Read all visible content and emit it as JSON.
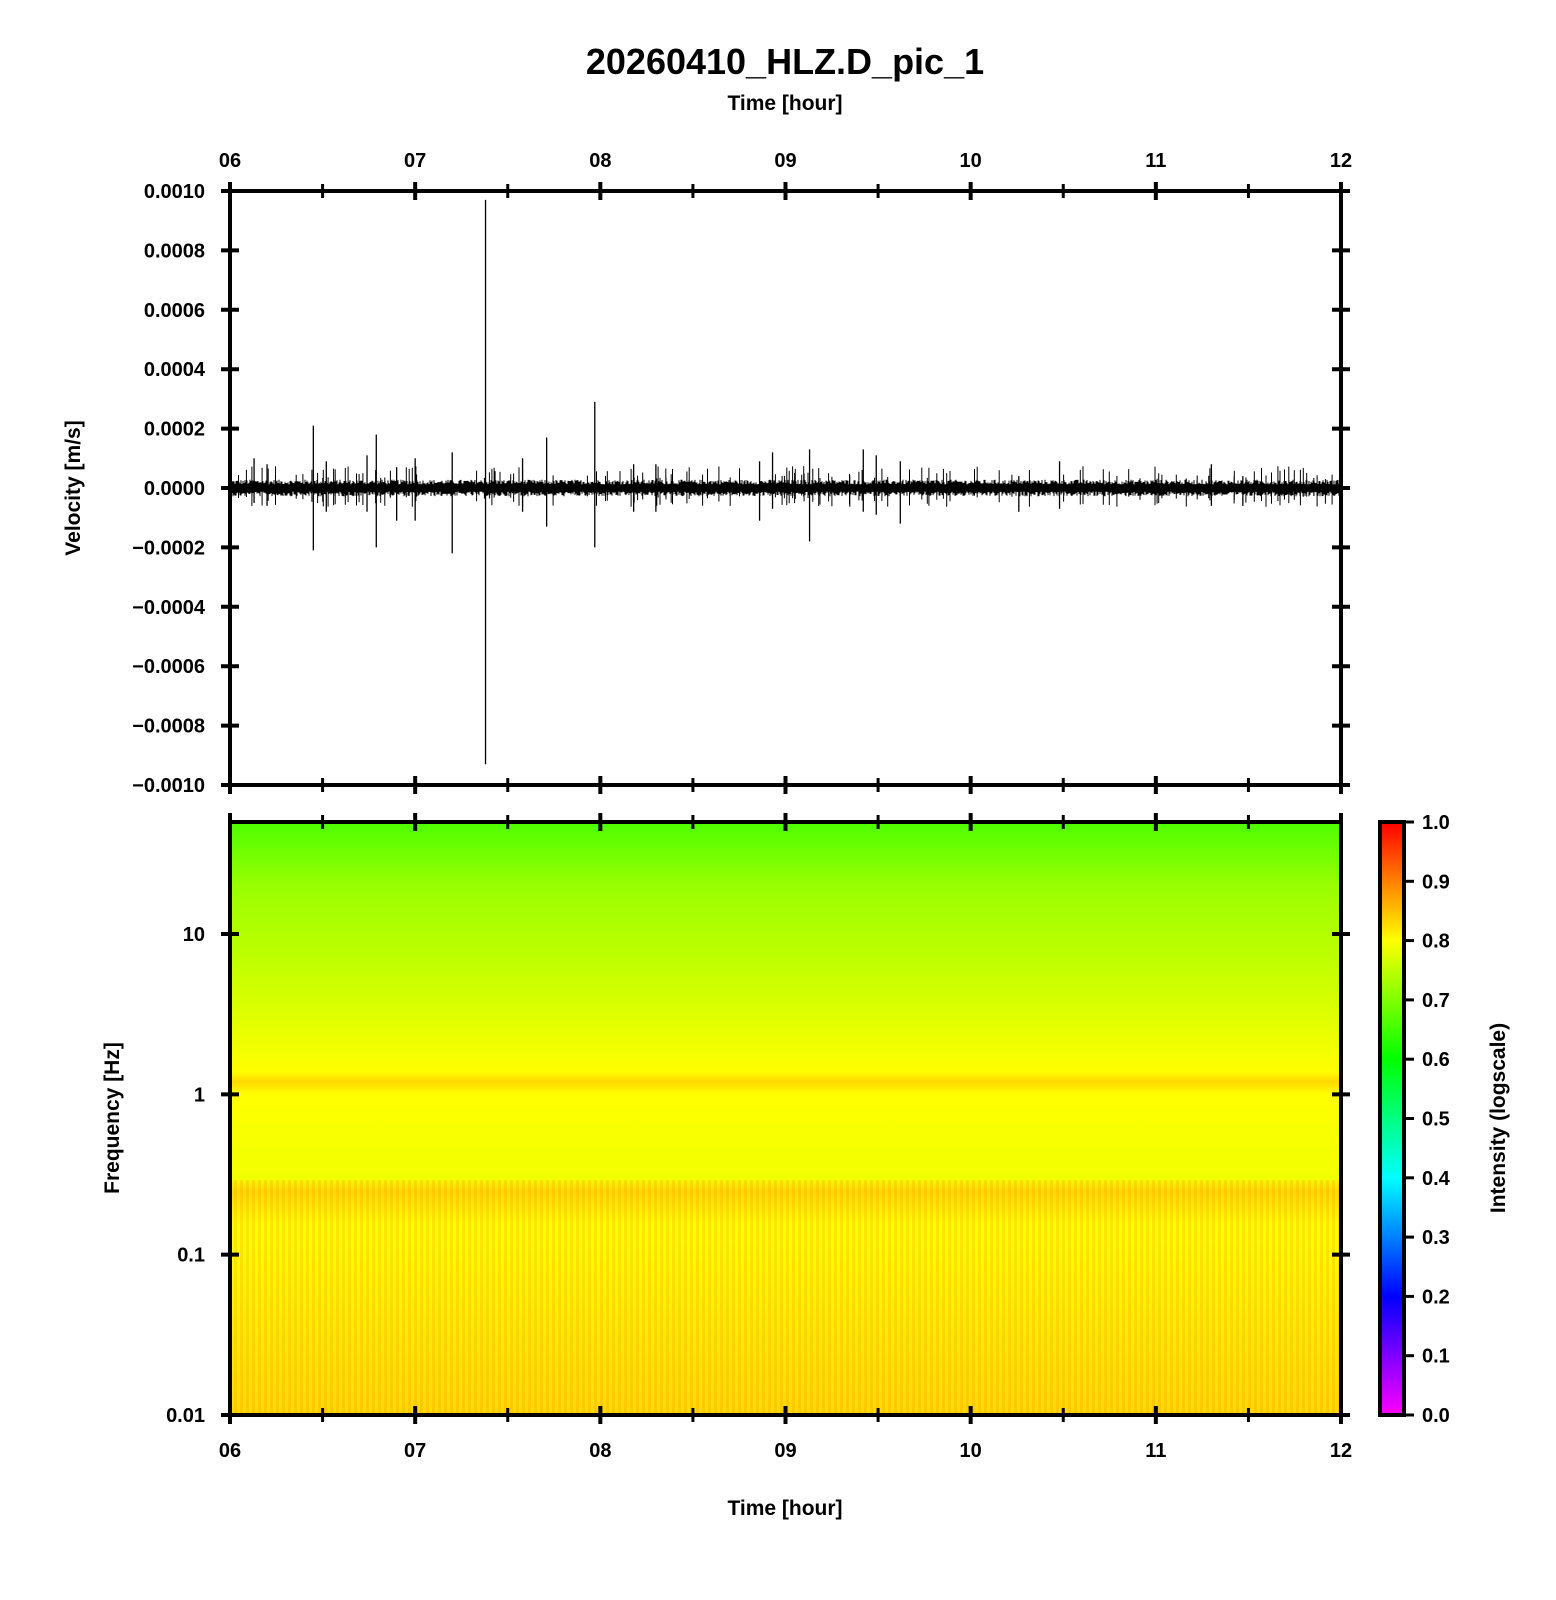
{
  "chart_data": [
    {
      "type": "line",
      "title": "20260410_HLZ.D_pic_1",
      "top_xlabel": "Time [hour]",
      "ylabel": "Velocity [m/s]",
      "xlim": [
        6,
        12
      ],
      "x_ticks": [
        "06",
        "07",
        "08",
        "09",
        "10",
        "11",
        "12"
      ],
      "ylim": [
        -0.001,
        0.001
      ],
      "y_ticks": [
        "0.0010",
        "0.0008",
        "0.0006",
        "0.0004",
        "0.0002",
        "0.0000",
        "−0.0002",
        "−0.0004",
        "−0.0006",
        "−0.0008",
        "−0.0010"
      ],
      "baseline_noise_amplitude": 2e-05,
      "spikes": [
        {
          "x": 6.13,
          "up": 0.0001,
          "down": -5e-05
        },
        {
          "x": 6.2,
          "up": 8e-05,
          "down": -6e-05
        },
        {
          "x": 6.45,
          "up": 0.00021,
          "down": -0.00021
        },
        {
          "x": 6.52,
          "up": 9e-05,
          "down": -8e-05
        },
        {
          "x": 6.74,
          "up": 0.00011,
          "down": -8e-05
        },
        {
          "x": 6.79,
          "up": 0.00018,
          "down": -0.0002
        },
        {
          "x": 6.9,
          "up": 7e-05,
          "down": -0.00011
        },
        {
          "x": 7.0,
          "up": 0.0001,
          "down": -0.00011
        },
        {
          "x": 7.2,
          "up": 0.00012,
          "down": -0.00022
        },
        {
          "x": 7.38,
          "up": 0.00097,
          "down": -0.00093
        },
        {
          "x": 7.58,
          "up": 0.0001,
          "down": -8e-05
        },
        {
          "x": 7.71,
          "up": 0.00017,
          "down": -0.00013
        },
        {
          "x": 7.97,
          "up": 0.00029,
          "down": -0.0002
        },
        {
          "x": 8.18,
          "up": 8e-05,
          "down": -8e-05
        },
        {
          "x": 8.3,
          "up": 8e-05,
          "down": -8e-05
        },
        {
          "x": 8.86,
          "up": 9e-05,
          "down": -0.00011
        },
        {
          "x": 8.93,
          "up": 0.00012,
          "down": -7e-05
        },
        {
          "x": 9.13,
          "up": 0.00013,
          "down": -0.00018
        },
        {
          "x": 9.42,
          "up": 0.00013,
          "down": -8e-05
        },
        {
          "x": 9.49,
          "up": 0.00011,
          "down": -9e-05
        },
        {
          "x": 9.62,
          "up": 9e-05,
          "down": -0.00012
        },
        {
          "x": 10.26,
          "up": 4e-05,
          "down": -8e-05
        },
        {
          "x": 10.48,
          "up": 9e-05,
          "down": -7e-05
        },
        {
          "x": 11.3,
          "up": 8e-05,
          "down": -6e-05
        },
        {
          "x": 11.47,
          "up": 4e-05,
          "down": -6e-05
        }
      ]
    },
    {
      "type": "heatmap",
      "xlabel": "Time [hour]",
      "ylabel": "Frequency [Hz]",
      "xlim": [
        6,
        12
      ],
      "x_ticks": [
        "06",
        "07",
        "08",
        "09",
        "10",
        "11",
        "12"
      ],
      "y_scale": "log",
      "ylim": [
        0.01,
        50
      ],
      "y_ticks": [
        {
          "value": 10,
          "label": "10"
        },
        {
          "value": 1,
          "label": "1"
        },
        {
          "value": 0.1,
          "label": "0.1"
        },
        {
          "value": 0.01,
          "label": "0.01"
        }
      ],
      "colorbar": {
        "label": "Intensity (logscale)",
        "range": [
          0,
          1
        ],
        "ticks": [
          "1.0",
          "0.9",
          "0.8",
          "0.7",
          "0.6",
          "0.5",
          "0.4",
          "0.3",
          "0.2",
          "0.1",
          "0.0"
        ],
        "colors": [
          "#ff00ff",
          "#0000ff",
          "#00ffff",
          "#00ff00",
          "#ffff00",
          "#ff0000"
        ]
      },
      "intensity_profile": [
        {
          "freq": 50,
          "intensity": 0.66
        },
        {
          "freq": 20,
          "intensity": 0.72
        },
        {
          "freq": 5,
          "intensity": 0.76
        },
        {
          "freq": 1.4,
          "intensity": 0.8
        },
        {
          "freq": 1.2,
          "intensity": 0.83
        },
        {
          "freq": 1.0,
          "intensity": 0.8
        },
        {
          "freq": 0.3,
          "intensity": 0.79
        },
        {
          "freq": 0.25,
          "intensity": 0.83
        },
        {
          "freq": 0.15,
          "intensity": 0.8
        },
        {
          "freq": 0.01,
          "intensity": 0.83
        }
      ]
    }
  ]
}
